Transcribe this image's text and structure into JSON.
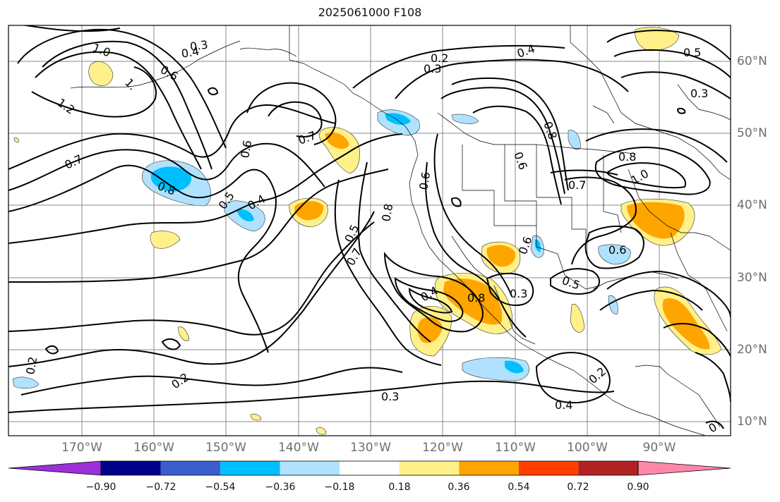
{
  "title": "2025061000 F108",
  "lon_labels": [
    "170°W",
    "160°W",
    "150°W",
    "140°W",
    "130°W",
    "120°W",
    "110°W",
    "100°W",
    "90°W"
  ],
  "lat_labels": [
    "60°N",
    "50°N",
    "40°N",
    "30°N",
    "20°N",
    "10°N"
  ],
  "colorbar": {
    "ticks": [
      "−0.90",
      "−0.72",
      "−0.54",
      "−0.36",
      "−0.18",
      "0.18",
      "0.36",
      "0.54",
      "0.72",
      "0.90"
    ],
    "colors": [
      "#9b30d9",
      "#00008b",
      "#3a5fcd",
      "#00bfff",
      "#b0e2ff",
      "#ffffff",
      "#fff08a",
      "#ffa500",
      "#ff3f00",
      "#b22222",
      "#ff88aa"
    ]
  },
  "contour_labels": [
    "0.3",
    "0.4",
    "1.0",
    "0.6",
    "1.",
    "1.2",
    "0.7",
    "0.8",
    "0.5",
    "0.4",
    "0.6",
    "0.7",
    "0.2",
    "0.3",
    "0.4",
    "0.5",
    "0.6",
    "0.8",
    "0.6",
    "0.8",
    "0.3",
    "0.8",
    "1.0",
    "0.7",
    "0.5",
    "0.7",
    "0.8",
    "0.6",
    "0.4",
    "0.6",
    "0.3",
    "0.5",
    "0.2",
    "0.3",
    "0.4",
    "0.2",
    "0.2",
    "0"
  ],
  "legend_colors": {
    "strong_neg": "#00bfff",
    "weak_neg": "#b0e2ff",
    "weak_pos": "#fff08a",
    "strong_pos": "#ffa500",
    "contour": "#000000",
    "coast": "#000000",
    "grid": "#888888"
  }
}
